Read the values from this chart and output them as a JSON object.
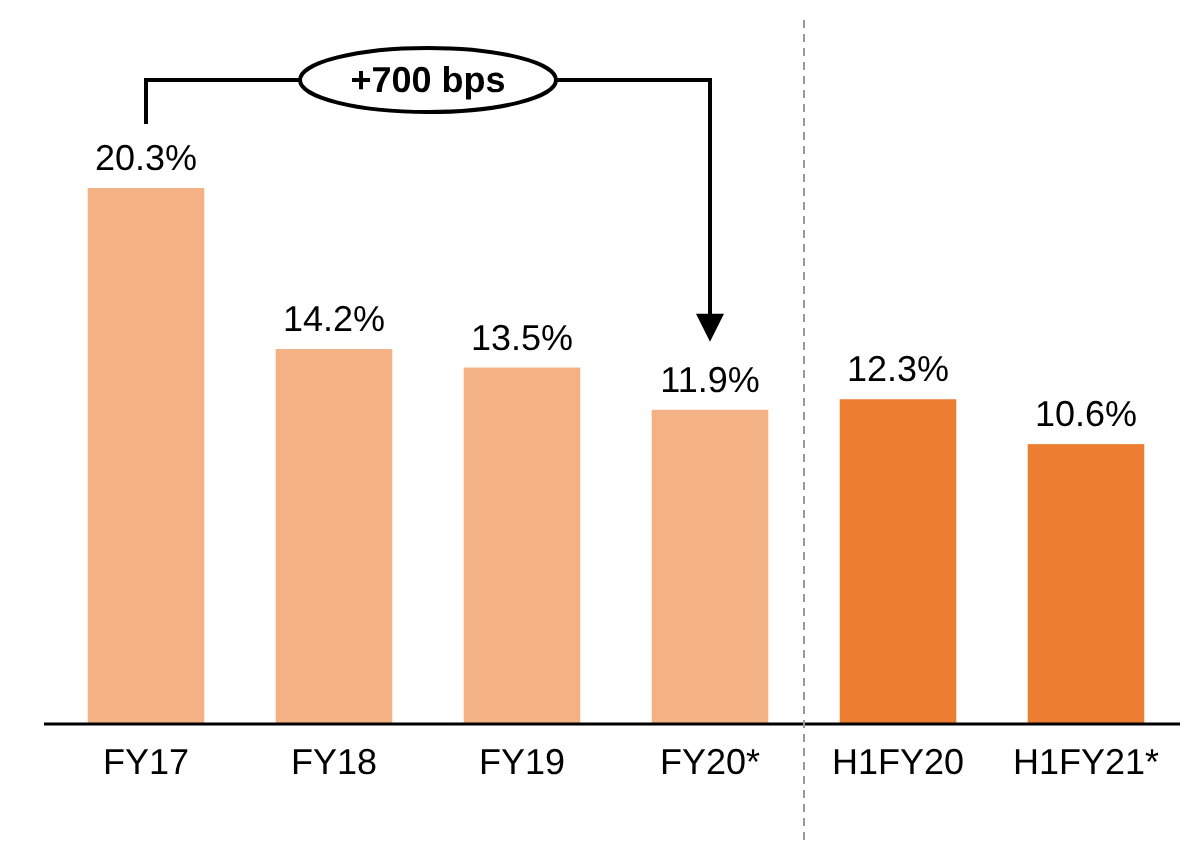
{
  "chart_data": {
    "type": "bar",
    "categories": [
      "FY17",
      "FY18",
      "FY19",
      "FY20*",
      "H1FY20",
      "H1FY21*"
    ],
    "values": [
      20.3,
      14.2,
      13.5,
      11.9,
      12.3,
      10.6
    ],
    "colors": [
      "#f4b183",
      "#f4b183",
      "#f4b183",
      "#f4b183",
      "#ed7d31",
      "#ed7d31"
    ],
    "value_labels": [
      "20.3%",
      "14.2%",
      "13.5%",
      "11.9%",
      "12.3%",
      "10.6%"
    ],
    "relative": false,
    "annotations": [
      "+700 bps"
    ]
  }
}
